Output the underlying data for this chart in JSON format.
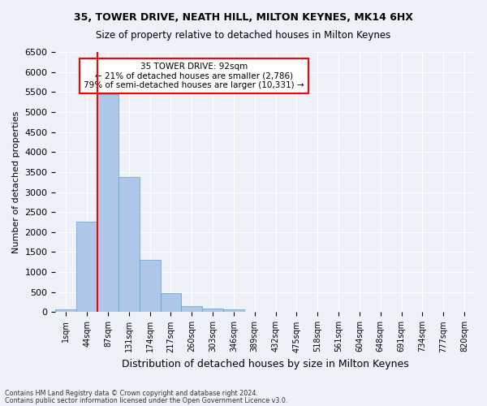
{
  "title1": "35, TOWER DRIVE, NEATH HILL, MILTON KEYNES, MK14 6HX",
  "title2": "Size of property relative to detached houses in Milton Keynes",
  "xlabel": "Distribution of detached houses by size in Milton Keynes",
  "ylabel": "Number of detached properties",
  "footer1": "Contains HM Land Registry data © Crown copyright and database right 2024.",
  "footer2": "Contains public sector information licensed under the Open Government Licence v3.0.",
  "annotation_title": "35 TOWER DRIVE: 92sqm",
  "annotation_line1": "← 21% of detached houses are smaller (2,786)",
  "annotation_line2": "79% of semi-detached houses are larger (10,331) →",
  "bar_values": [
    75,
    2270,
    5440,
    3380,
    1310,
    480,
    160,
    85,
    75,
    0,
    0,
    0,
    0,
    0,
    0,
    0,
    0,
    0,
    0,
    0
  ],
  "bar_labels": [
    "1sqm",
    "44sqm",
    "87sqm",
    "131sqm",
    "174sqm",
    "217sqm",
    "260sqm",
    "303sqm",
    "346sqm",
    "389sqm",
    "432sqm",
    "475sqm",
    "518sqm",
    "561sqm",
    "604sqm",
    "648sqm",
    "691sqm",
    "734sqm",
    "777sqm",
    "820sqm"
  ],
  "bar_color": "#aec6e8",
  "bar_edge_color": "#5a9fd4",
  "marker_color": "red",
  "ylim": [
    0,
    6500
  ],
  "yticks": [
    0,
    500,
    1000,
    1500,
    2000,
    2500,
    3000,
    3500,
    4000,
    4500,
    5000,
    5500,
    6000,
    6500
  ],
  "bg_color": "#eef2f8",
  "grid_color": "white",
  "annotation_box_color": "white",
  "annotation_box_edge": "red"
}
